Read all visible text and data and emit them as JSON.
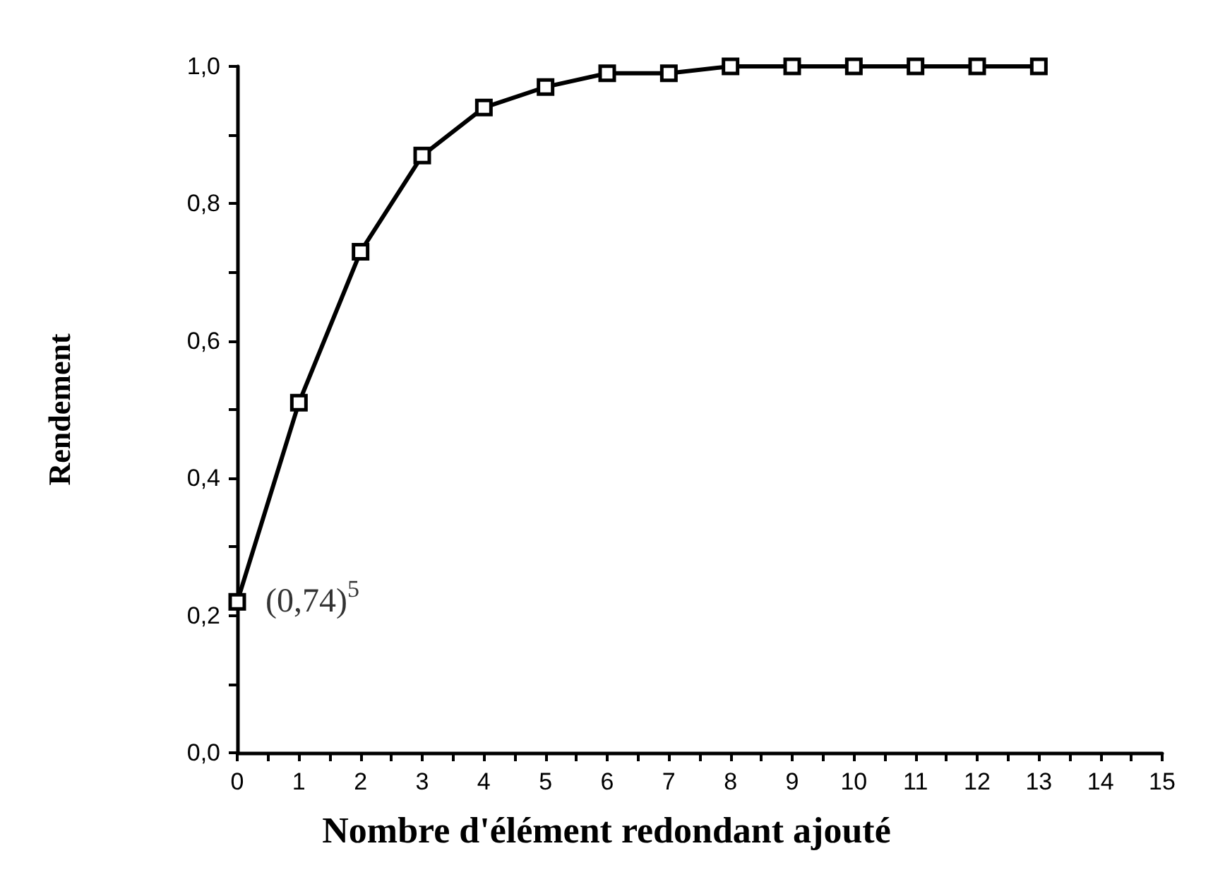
{
  "chart_data": {
    "type": "line",
    "xlabel": "Nombre d'élément redondant ajouté",
    "ylabel": "Rendement",
    "x": [
      0,
      1,
      2,
      3,
      4,
      5,
      6,
      7,
      8,
      9,
      10,
      11,
      12,
      13
    ],
    "series": [
      {
        "color": "#000000",
        "values": [
          0.22,
          0.51,
          0.73,
          0.87,
          0.94,
          0.97,
          0.99,
          0.99,
          1.0,
          1.0,
          1.0,
          1.0,
          1.0,
          1.0
        ]
      }
    ],
    "xlim": [
      0,
      15
    ],
    "xticks": [
      0,
      {
        "value": 0.5,
        "label": null
      },
      1,
      {
        "value": 1.5,
        "label": null
      },
      2,
      {
        "value": 2.5,
        "label": null
      },
      3,
      {
        "value": 3.5,
        "label": null
      },
      4,
      {
        "value": 4.5,
        "label": null
      },
      5,
      {
        "value": 5.5,
        "label": null
      },
      6,
      {
        "value": 6.5,
        "label": null
      },
      7,
      {
        "value": 7.5,
        "label": null
      },
      8,
      {
        "value": 8.5,
        "label": null
      },
      9,
      {
        "value": 9.5,
        "label": null
      },
      10,
      {
        "value": 10.5,
        "label": null
      },
      11,
      {
        "value": 11.5,
        "label": null
      },
      12,
      {
        "value": 12.5,
        "label": null
      },
      13,
      {
        "value": 13.5,
        "label": null
      },
      14,
      {
        "value": 14.5,
        "label": null
      },
      15
    ],
    "ylim": [
      0,
      1
    ],
    "yticks": [
      {
        "value": 0,
        "label": "0,0"
      },
      {
        "value": 0.1,
        "label": null
      },
      {
        "value": 0.2,
        "label": "0,2"
      },
      {
        "value": 0.3,
        "label": null
      },
      {
        "value": 0.4,
        "label": "0,4"
      },
      {
        "value": 0.5,
        "label": null
      },
      {
        "value": 0.6,
        "label": "0,6"
      },
      {
        "value": 0.7,
        "label": null
      },
      {
        "value": 0.8,
        "label": "0,8"
      },
      {
        "value": 0.9,
        "label": null
      },
      {
        "value": 1,
        "label": "1,0"
      }
    ],
    "annotations": [
      {
        "text": "(0,74)$^{5}$",
        "x": 0,
        "y": 0.22
      }
    ],
    "marker": "square",
    "line_style": "solid"
  }
}
